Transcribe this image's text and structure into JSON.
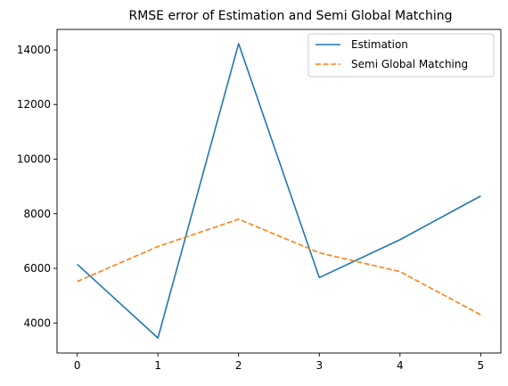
{
  "chart_data": {
    "type": "line",
    "title": "RMSE error of Estimation and Semi Global Matching",
    "xlabel": "",
    "ylabel": "",
    "x": [
      0,
      1,
      2,
      3,
      4,
      5
    ],
    "xlim": [
      -0.25,
      5.25
    ],
    "ylim": [
      2900,
      14750
    ],
    "xticks": [
      "0",
      "1",
      "2",
      "3",
      "4",
      "5"
    ],
    "yticks": [
      "4000",
      "6000",
      "8000",
      "10000",
      "12000",
      "14000"
    ],
    "grid": false,
    "legend": "upper right",
    "series": [
      {
        "name": "Estimation",
        "values": [
          6150,
          3450,
          14230,
          5660,
          7050,
          8650
        ],
        "color": "#1f77b4",
        "style": "solid"
      },
      {
        "name": "Semi Global Matching",
        "values": [
          5520,
          6800,
          7800,
          6570,
          5880,
          4300
        ],
        "color": "#ff7f0e",
        "style": "dashed"
      }
    ]
  }
}
